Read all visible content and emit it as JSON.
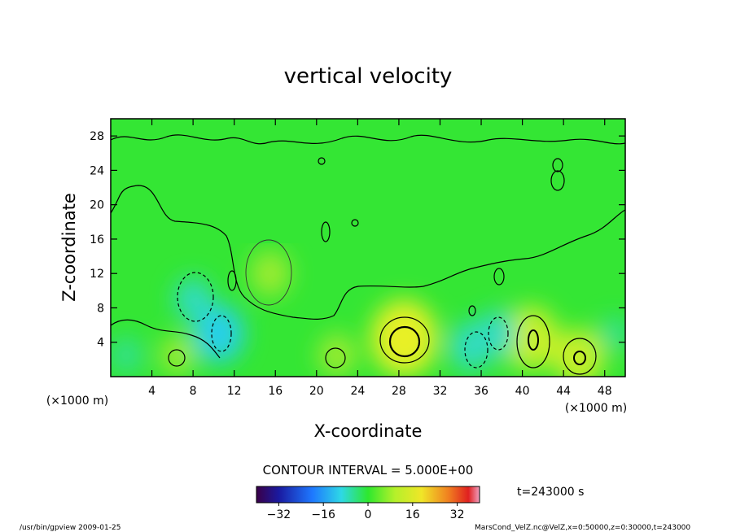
{
  "chart_data": {
    "type": "heatmap",
    "title": "vertical velocity",
    "xlabel": "X-coordinate",
    "ylabel": "Z-coordinate",
    "x_scale_label": "(×1000 m)",
    "y_scale_label": "(×1000 m)",
    "xlim": [
      0,
      50
    ],
    "ylim": [
      0,
      30
    ],
    "x_ticks": [
      4,
      8,
      12,
      16,
      20,
      24,
      28,
      32,
      36,
      40,
      44,
      48
    ],
    "y_ticks": [
      4,
      8,
      12,
      16,
      20,
      24,
      28
    ],
    "contour_interval_label": "CONTOUR INTERVAL = 5.000E+00",
    "time_label": "t=243000 s",
    "colorbar": {
      "range": [
        -40,
        40
      ],
      "ticks": [
        -32,
        -16,
        0,
        16,
        32
      ]
    },
    "features": [
      {
        "kind": "updraft",
        "x": 28.5,
        "z": 4.5,
        "value": 18
      },
      {
        "kind": "updraft",
        "x": 40.8,
        "z": 4.5,
        "value": 14
      },
      {
        "kind": "updraft",
        "x": 45.5,
        "z": 2.2,
        "value": 12
      },
      {
        "kind": "updraft",
        "x": 15.5,
        "z": 12,
        "value": 8
      },
      {
        "kind": "updraft",
        "x": 22,
        "z": 2.5,
        "value": 7
      },
      {
        "kind": "updraft",
        "x": 6.5,
        "z": 2.5,
        "value": 6
      },
      {
        "kind": "downdraft",
        "x": 10.5,
        "z": 5,
        "value": -12
      },
      {
        "kind": "downdraft",
        "x": 8,
        "z": 9,
        "value": -7
      },
      {
        "kind": "downdraft",
        "x": 1.5,
        "z": 2.5,
        "value": -5
      },
      {
        "kind": "downdraft",
        "x": 35,
        "z": 3.5,
        "value": -9
      },
      {
        "kind": "downdraft",
        "x": 37.5,
        "z": 5,
        "value": -8
      },
      {
        "kind": "downdraft",
        "x": 49,
        "z": 5,
        "value": -4
      }
    ]
  },
  "footer": {
    "left": "/usr/bin/gpview   2009-01-25",
    "right": "MarsCond_VelZ.nc@VelZ,x=0:50000,z=0:30000,t=243000"
  }
}
